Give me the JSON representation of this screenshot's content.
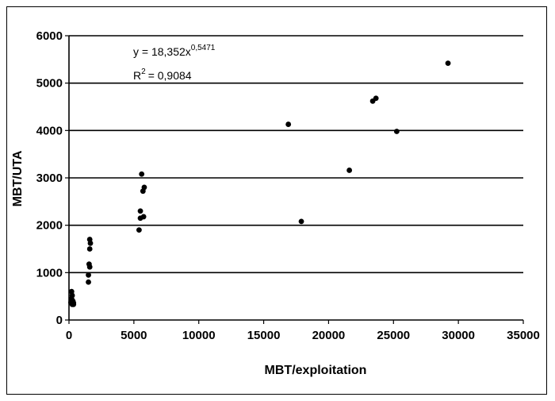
{
  "chart_data": {
    "type": "scatter",
    "xlabel": "MBT/exploitation",
    "ylabel": "MBT/UTA",
    "xlim": [
      0,
      35000
    ],
    "ylim": [
      0,
      6000
    ],
    "xticks": [
      0,
      5000,
      10000,
      15000,
      20000,
      25000,
      30000,
      35000
    ],
    "yticks": [
      0,
      1000,
      2000,
      3000,
      4000,
      5000,
      6000
    ],
    "x_tick_labels": [
      "0",
      "5000",
      "10000",
      "15000",
      "20000",
      "25000",
      "30000",
      "35000"
    ],
    "y_tick_labels": [
      "0",
      "1000",
      "2000",
      "3000",
      "4000",
      "5000",
      "6000"
    ],
    "grid": "horizontal",
    "color": "#000000",
    "annotations": {
      "equation_base": "y = 18,352x",
      "equation_exp": "0,5471",
      "r2_base": "R",
      "r2_sup": "2",
      "r2_value": "= 0,9084"
    },
    "points": [
      [
        200,
        600
      ],
      [
        250,
        520
      ],
      [
        200,
        450
      ],
      [
        300,
        400
      ],
      [
        350,
        360
      ],
      [
        250,
        330
      ],
      [
        150,
        370
      ],
      [
        350,
        330
      ],
      [
        1500,
        800
      ],
      [
        1500,
        950
      ],
      [
        1600,
        1120
      ],
      [
        1550,
        1180
      ],
      [
        1600,
        1500
      ],
      [
        1650,
        1620
      ],
      [
        1600,
        1700
      ],
      [
        5400,
        1900
      ],
      [
        5500,
        2150
      ],
      [
        5500,
        2300
      ],
      [
        5750,
        2180
      ],
      [
        5700,
        2720
      ],
      [
        5800,
        2800
      ],
      [
        5600,
        3080
      ],
      [
        16900,
        4130
      ],
      [
        17900,
        2080
      ],
      [
        21600,
        3160
      ],
      [
        23400,
        4620
      ],
      [
        23650,
        4680
      ],
      [
        25250,
        3980
      ],
      [
        29200,
        5420
      ]
    ]
  }
}
